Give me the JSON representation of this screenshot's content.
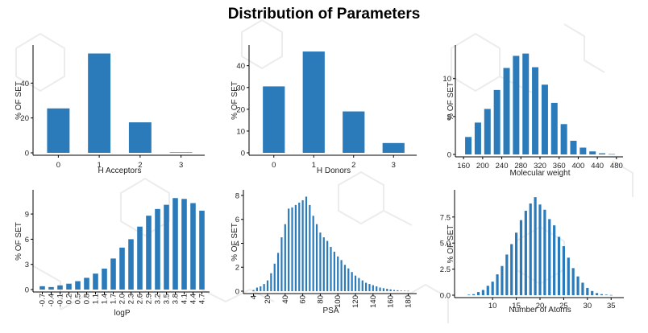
{
  "title": "Distribution of Parameters",
  "colors": {
    "bar": "#2b7bba",
    "axis": "#000000",
    "background_pattern": "#ececec"
  },
  "chart_data": [
    {
      "type": "bar",
      "categories": [
        "0",
        "1",
        "2",
        "3"
      ],
      "values": [
        25.5,
        57,
        17.5,
        0.3
      ],
      "xlabel": "H Acceptors",
      "ylabel": "% OF SET",
      "ylim": [
        0,
        60
      ],
      "yticks": [
        0,
        20,
        40
      ],
      "xticks": [
        "0",
        "1",
        "2",
        "3"
      ],
      "grid": false
    },
    {
      "type": "bar",
      "categories": [
        "0",
        "1",
        "2",
        "3"
      ],
      "values": [
        30.5,
        46.5,
        19,
        4.5
      ],
      "xlabel": "H Donors",
      "ylabel": "% OF SET",
      "ylim": [
        0,
        48
      ],
      "yticks": [
        0,
        10,
        20,
        30,
        40
      ],
      "xticks": [
        "0",
        "1",
        "2",
        "3"
      ],
      "grid": false
    },
    {
      "type": "bar",
      "x": [
        170,
        190,
        210,
        230,
        250,
        270,
        290,
        310,
        330,
        350,
        370,
        390,
        410,
        430,
        450,
        470
      ],
      "values": [
        2.3,
        4.2,
        6.0,
        8.5,
        11.4,
        13.0,
        13.3,
        11.5,
        9.2,
        6.8,
        4.0,
        1.8,
        0.9,
        0.4,
        0.15,
        0.05
      ],
      "xlabel": "Molecular weight",
      "ylabel": "% OF SET",
      "xlim": [
        153,
        487
      ],
      "ylim": [
        0,
        14
      ],
      "yticks": [
        0,
        5,
        10
      ],
      "xticks": [
        "160",
        "200",
        "240",
        "280",
        "320",
        "360",
        "400",
        "440",
        "480"
      ],
      "grid": false
    },
    {
      "type": "bar",
      "categories": [
        "-0.7",
        "-0.4",
        "-0.1",
        "0.2",
        "0.5",
        "0.8",
        "1.1",
        "1.4",
        "1.7",
        "2.0",
        "2.3",
        "2.6",
        "2.9",
        "3.2",
        "3.5",
        "3.8",
        "4.1",
        "4.4",
        "4.7"
      ],
      "values": [
        0.4,
        0.3,
        0.5,
        0.7,
        1.0,
        1.4,
        1.9,
        2.5,
        3.7,
        5.0,
        6.0,
        7.5,
        8.8,
        9.6,
        10.1,
        10.9,
        10.8,
        10.3,
        9.4
      ],
      "xlabel": "logP",
      "ylabel": "% OF SET",
      "ylim": [
        0,
        11.5
      ],
      "yticks": [
        0,
        3,
        6,
        9
      ],
      "xticks": [
        "-0.7",
        "-0.4",
        "-0.1",
        "0.2",
        "0.5",
        "0.8",
        "1.1",
        "1.4",
        "1.7",
        "2.0",
        "2.3",
        "2.6",
        "2.9",
        "3.2",
        "3.5",
        "3.8",
        "4.1",
        "4.4",
        "4.7"
      ],
      "grid": false
    },
    {
      "type": "bar",
      "x": [
        4,
        8,
        12,
        16,
        20,
        24,
        28,
        32,
        36,
        40,
        44,
        48,
        52,
        56,
        60,
        64,
        68,
        72,
        76,
        80,
        84,
        88,
        92,
        96,
        100,
        104,
        108,
        112,
        116,
        120,
        124,
        128,
        132,
        136,
        140,
        144,
        148,
        152,
        156,
        160,
        164,
        168,
        172,
        176,
        180
      ],
      "values": [
        0.1,
        0.3,
        0.4,
        0.6,
        0.9,
        1.5,
        2.3,
        3.2,
        4.5,
        5.6,
        6.9,
        7.0,
        7.2,
        7.4,
        7.6,
        7.9,
        7.2,
        6.3,
        5.6,
        4.9,
        4.5,
        4.2,
        3.7,
        3.3,
        2.9,
        2.6,
        2.2,
        1.9,
        1.6,
        1.3,
        1.1,
        0.9,
        0.7,
        0.6,
        0.5,
        0.4,
        0.3,
        0.25,
        0.2,
        0.15,
        0.1,
        0.08,
        0.05,
        0.04,
        0.03
      ],
      "xlabel": "PSA",
      "ylabel": "% OF SET",
      "xlim": [
        -2,
        186
      ],
      "ylim": [
        0,
        8.2
      ],
      "yticks": [
        0,
        2,
        4,
        6,
        8
      ],
      "xticks": [
        "4",
        "20",
        "40",
        "60",
        "80",
        "100",
        "120",
        "140",
        "160",
        "180"
      ],
      "grid": false
    },
    {
      "type": "bar",
      "x": [
        5,
        6,
        7,
        8,
        9,
        10,
        11,
        12,
        13,
        14,
        15,
        16,
        17,
        18,
        19,
        20,
        21,
        22,
        23,
        24,
        25,
        26,
        27,
        28,
        29,
        30,
        31,
        32,
        33,
        34,
        35
      ],
      "values": [
        0.05,
        0.1,
        0.3,
        0.5,
        0.9,
        1.3,
        2.0,
        2.8,
        3.9,
        4.9,
        6.0,
        7.2,
        8.1,
        8.8,
        9.4,
        8.7,
        8.2,
        7.3,
        6.7,
        5.6,
        4.7,
        3.6,
        2.6,
        1.8,
        1.2,
        0.7,
        0.4,
        0.2,
        0.1,
        0.05,
        0.02
      ],
      "xlabel": "Number of Atoms",
      "ylabel": "% OF SET",
      "xlim": [
        3,
        37
      ],
      "ylim": [
        0,
        9.8
      ],
      "yticks": [
        0.0,
        2.5,
        5.0,
        7.5
      ],
      "xticks": [
        "10",
        "15",
        "20",
        "25",
        "30",
        "35"
      ],
      "grid": false
    }
  ]
}
